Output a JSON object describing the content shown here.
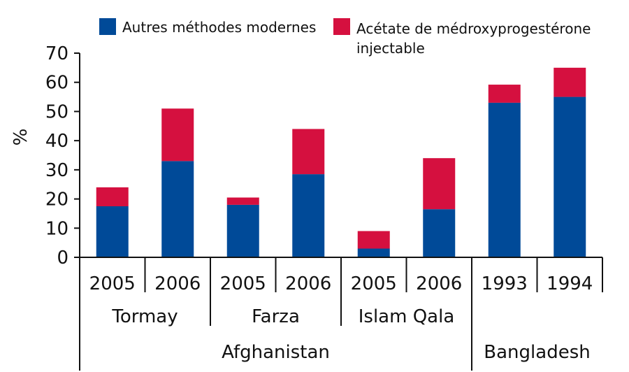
{
  "chart_data": {
    "type": "bar",
    "stacked": true,
    "ylabel": "%",
    "ylim": [
      0,
      70
    ],
    "yticks": [
      0,
      10,
      20,
      30,
      40,
      50,
      60,
      70
    ],
    "grid": false,
    "legend_position": "top",
    "categories": [
      "2005",
      "2006",
      "2005",
      "2006",
      "2005",
      "2006",
      "1993",
      "1994"
    ],
    "groups": [
      {
        "label": "Tormay",
        "span": [
          0,
          1
        ]
      },
      {
        "label": "Farza",
        "span": [
          2,
          3
        ]
      },
      {
        "label": "Islam Qala",
        "span": [
          4,
          5
        ]
      }
    ],
    "regions": [
      {
        "label": "Afghanistan",
        "span": [
          0,
          5
        ]
      },
      {
        "label": "Bangladesh",
        "span": [
          6,
          7
        ]
      }
    ],
    "series": [
      {
        "name": "Autres méthodes modernes",
        "color": "#004a98",
        "values": [
          17.5,
          33,
          18,
          28.5,
          3,
          16.5,
          53,
          55
        ]
      },
      {
        "name": "Acétate de médroxyprogestérone injectable",
        "color": "#d5103f",
        "values": [
          6.5,
          18,
          2.5,
          15.5,
          6,
          17.5,
          6.2,
          10
        ]
      }
    ]
  },
  "legend": {
    "item_1_label": "Autres méthodes modernes",
    "item_2_line_1": "Acétate de médroxyprogestérone",
    "item_2_line_2": "injectable"
  }
}
